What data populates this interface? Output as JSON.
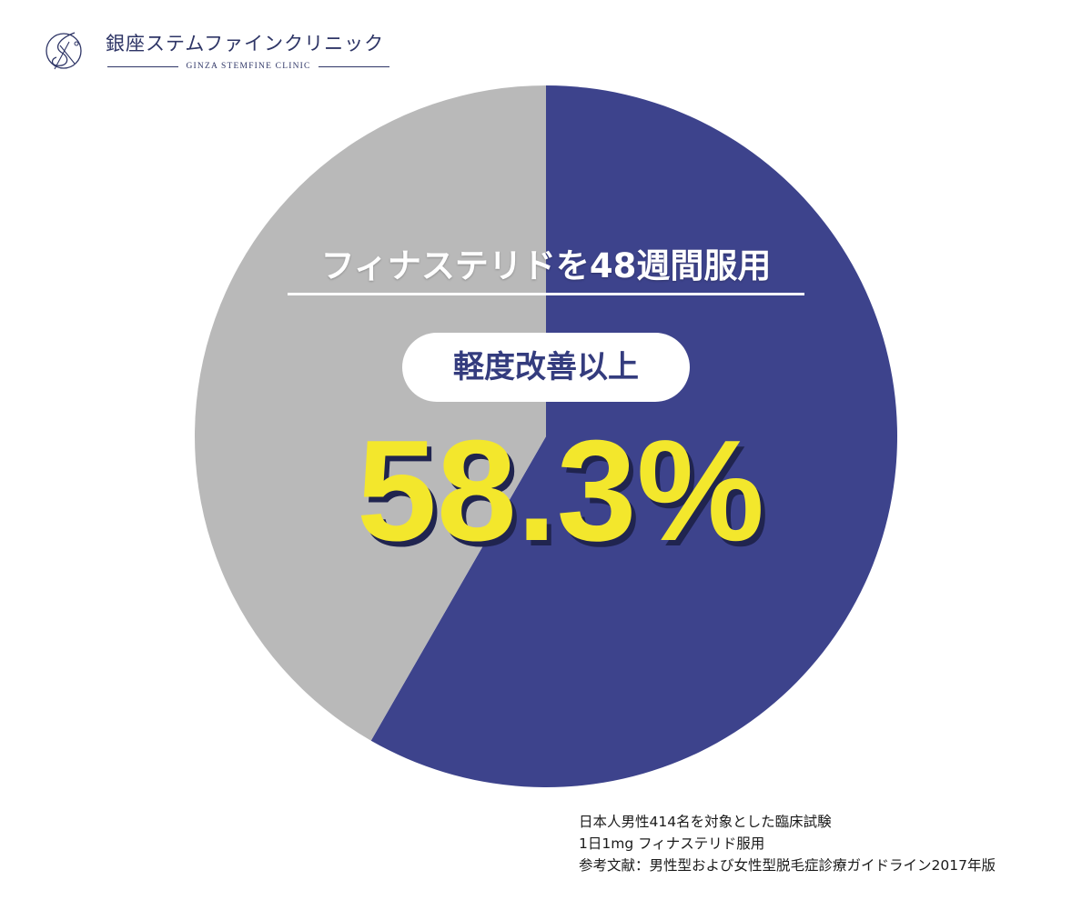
{
  "brand": {
    "name_jp": "銀座ステムファインクリニック",
    "name_en": "GINZA STEMFINE CLINIC",
    "mark": "clinic-logo-mark"
  },
  "colors": {
    "primary": "#3d438c",
    "secondary": "#b9b9b9",
    "highlight": "#f3e72c",
    "white": "#ffffff"
  },
  "chart_data": {
    "type": "pie",
    "categories": [
      "軽度改善以上",
      ""
    ],
    "values": [
      58.3,
      41.7
    ],
    "value_unit": "%",
    "colors": [
      "#3d438c",
      "#b9b9b9"
    ],
    "start": "12 o'clock, clockwise",
    "title": "フィナステリドを48週間服用",
    "annotation_label": "軽度改善以上",
    "annotation_value": "58.3%"
  },
  "notes": [
    "日本人男性414名を対象とした臨床試験",
    "1日1mg フィナステリド服用",
    "参考文献：男性型および女性型脱毛症診療ガイドライン2017年版"
  ]
}
